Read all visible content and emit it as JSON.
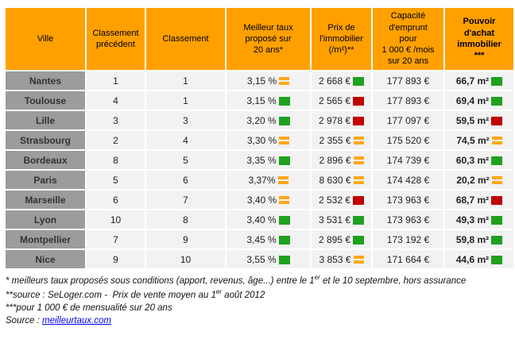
{
  "colors": {
    "header_orange": "#FFA000",
    "city_gray": "#9C9C9C",
    "row_gray": "#F2F2F2",
    "trend_green": "#1FA01F",
    "trend_red": "#C00000",
    "trend_orange": "#FFA716",
    "link_blue": "#0000EE"
  },
  "table": {
    "headers": [
      {
        "label": "Ville",
        "bold": false
      },
      {
        "label": "Classement\nprécédent",
        "bold": false
      },
      {
        "label": "Classement",
        "bold": false
      },
      {
        "label": "Meilleur taux\nproposé sur\n20 ans*",
        "bold": false
      },
      {
        "label": "Prix de\nl'immobilier\n(/m²)**",
        "bold": false
      },
      {
        "label": "Capacité\nd'emprunt\npour\n1 000 € /mois\nsur 20 ans",
        "bold": false
      },
      {
        "label": "Pouvoir\nd'achat\nimmobilier\n***",
        "bold": true
      }
    ]
  },
  "chart_data": {
    "type": "table",
    "title": "",
    "columns": [
      "Ville",
      "Classement précédent",
      "Classement",
      "Meilleur taux proposé sur 20 ans*",
      "Prix de l'immobilier (/m²)**",
      "Capacité d'emprunt pour 1 000 € /mois sur 20 ans",
      "Pouvoir d'achat immobilier ***"
    ],
    "trend_legend": "equal = orange double bar, up/down = colored triangle",
    "rows": [
      {
        "city": "Nantes",
        "previous_rank": "1",
        "rank": "1",
        "rate": "3,15 %",
        "rate_trend": "equal",
        "price": "2 668 €",
        "price_trend": "down-green",
        "capacity": "177 893 €",
        "power": "66,7 m²",
        "power_trend": "up-green"
      },
      {
        "city": "Toulouse",
        "previous_rank": "4",
        "rank": "1",
        "rate": "3,15 %",
        "rate_trend": "down-green",
        "price": "2 565 €",
        "price_trend": "up-red",
        "capacity": "177 893 €",
        "power": "69,4 m²",
        "power_trend": "up-green"
      },
      {
        "city": "Lille",
        "previous_rank": "3",
        "rank": "3",
        "rate": "3,20 %",
        "rate_trend": "down-green",
        "price": "2 978 €",
        "price_trend": "up-red",
        "capacity": "177 097 €",
        "power": "59,5 m²",
        "power_trend": "down-red"
      },
      {
        "city": "Strasbourg",
        "previous_rank": "2",
        "rank": "4",
        "rate": "3,30 %",
        "rate_trend": "equal",
        "price": "2 355 €",
        "price_trend": "equal",
        "capacity": "175 520 €",
        "power": "74,5 m²",
        "power_trend": "equal"
      },
      {
        "city": "Bordeaux",
        "previous_rank": "8",
        "rank": "5",
        "rate": "3,35 %",
        "rate_trend": "down-green",
        "price": "2 896 €",
        "price_trend": "equal",
        "capacity": "174 739 €",
        "power": "60,3 m²",
        "power_trend": "up-green"
      },
      {
        "city": "Paris",
        "previous_rank": "5",
        "rank": "6",
        "rate": "3,37%",
        "rate_trend": "equal",
        "price": "8 630 €",
        "price_trend": "equal",
        "capacity": "174 428 €",
        "power": "20,2 m²",
        "power_trend": "equal"
      },
      {
        "city": "Marseille",
        "previous_rank": "6",
        "rank": "7",
        "rate": "3,40 %",
        "rate_trend": "equal",
        "price": "2 532 €",
        "price_trend": "up-red",
        "capacity": "173 963 €",
        "power": "68,7 m²",
        "power_trend": "down-red"
      },
      {
        "city": "Lyon",
        "previous_rank": "10",
        "rank": "8",
        "rate": "3,40 %",
        "rate_trend": "down-green",
        "price": "3 531 €",
        "price_trend": "down-green",
        "capacity": "173 963 €",
        "power": "49,3 m²",
        "power_trend": "up-green"
      },
      {
        "city": "Montpellier",
        "previous_rank": "7",
        "rank": "9",
        "rate": "3,45 %",
        "rate_trend": "down-green",
        "price": "2 895 €",
        "price_trend": "down-green",
        "capacity": "173 192 €",
        "power": "59,8 m²",
        "power_trend": "up-green"
      },
      {
        "city": "Nice",
        "previous_rank": "9",
        "rank": "10",
        "rate": "3,55 %",
        "rate_trend": "down-green",
        "price": "3 853 €",
        "price_trend": "equal",
        "capacity": "171 664 €",
        "power": "44,6 m²",
        "power_trend": "up-green"
      }
    ]
  },
  "footnotes": {
    "line1": {
      "pre": "* meilleurs taux proposés sous conditions (apport, revenus, âge...) entre le 1",
      "sup": "er",
      "post": " et le 10 septembre, hors assurance"
    },
    "line2": {
      "pre": "**source : SeLoger.com -  Prix de vente moyen au 1",
      "sup": "er",
      "post": " août 2012"
    },
    "line3": "***pour 1 000 € de mensualité sur 20 ans",
    "source_label": "Source : ",
    "source_link": "meilleurtaux.com"
  }
}
